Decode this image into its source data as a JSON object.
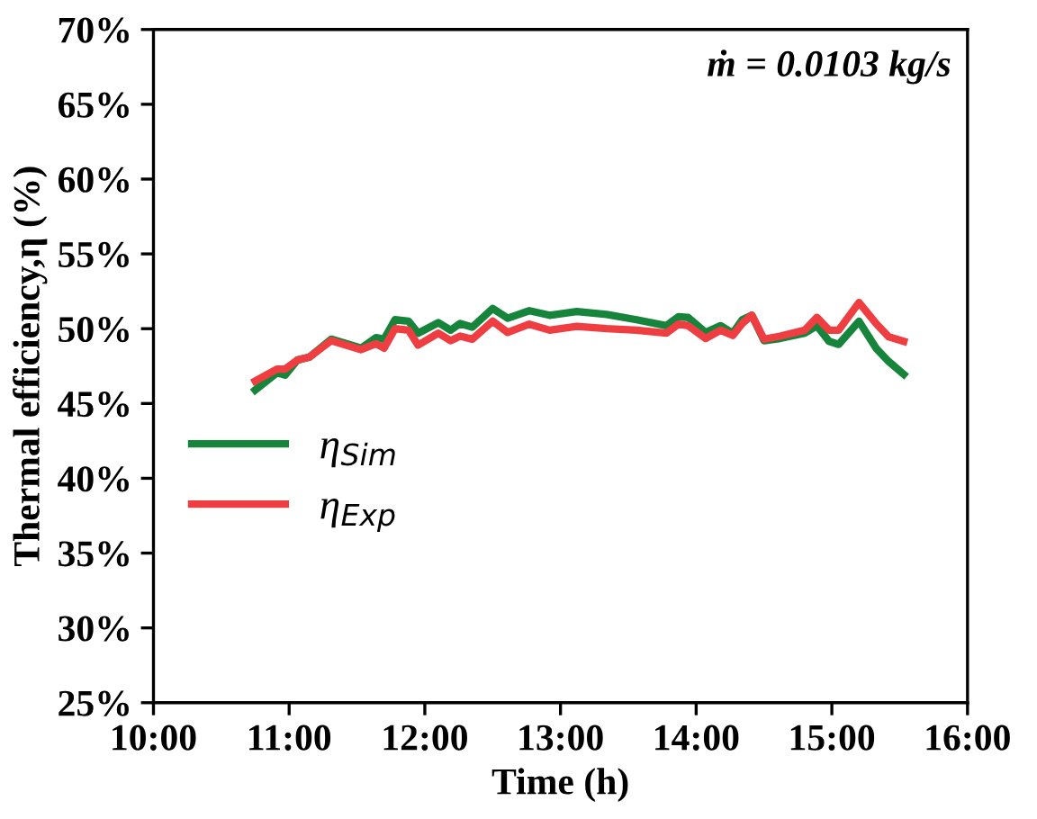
{
  "chart_data": {
    "type": "line",
    "xlabel": "Time (h)",
    "ylabel": "Thermal efficiency,η (%)",
    "annotations": [
      "ṁ = 0.0103 kg/s"
    ],
    "x": [
      10.75,
      10.91,
      10.97,
      11.06,
      11.15,
      11.31,
      11.53,
      11.64,
      11.7,
      11.78,
      11.88,
      11.95,
      12.1,
      12.19,
      12.26,
      12.35,
      12.5,
      12.61,
      12.77,
      12.92,
      13.12,
      13.34,
      13.56,
      13.78,
      13.87,
      13.94,
      14.07,
      14.18,
      14.27,
      14.34,
      14.41,
      14.5,
      14.62,
      14.8,
      14.89,
      14.98,
      15.05,
      15.2,
      15.33,
      15.42,
      15.53
    ],
    "series": [
      {
        "name": "η$_{Sim}$",
        "color": "#17843c",
        "values": [
          45.9,
          47.05,
          46.9,
          47.9,
          48.1,
          49.3,
          48.7,
          49.4,
          49.3,
          50.6,
          50.5,
          49.7,
          50.4,
          49.9,
          50.35,
          50.1,
          51.35,
          50.7,
          51.2,
          50.9,
          51.15,
          50.95,
          50.6,
          50.2,
          50.8,
          50.75,
          49.75,
          50.2,
          49.7,
          50.6,
          50.9,
          49.2,
          49.35,
          49.7,
          50.2,
          49.15,
          48.95,
          50.5,
          48.65,
          47.8,
          46.95
        ]
      },
      {
        "name": "η$_{Exp}$",
        "color": "#ef3e42",
        "values": [
          46.5,
          47.3,
          47.3,
          47.9,
          48.1,
          49.2,
          48.6,
          49.0,
          48.7,
          50.0,
          49.9,
          48.9,
          49.7,
          49.2,
          49.5,
          49.3,
          50.5,
          49.75,
          50.3,
          49.9,
          50.15,
          50.0,
          49.9,
          49.7,
          50.3,
          50.2,
          49.35,
          49.9,
          49.55,
          50.35,
          50.9,
          49.3,
          49.5,
          49.9,
          50.75,
          49.9,
          49.9,
          51.75,
          50.3,
          49.45,
          49.15
        ]
      }
    ],
    "xlim": [
      10,
      16
    ],
    "xticks": [
      {
        "value": 10,
        "label": "10:00"
      },
      {
        "value": 11,
        "label": "11:00"
      },
      {
        "value": 12,
        "label": "12:00"
      },
      {
        "value": 13,
        "label": "13:00"
      },
      {
        "value": 14,
        "label": "14:00"
      },
      {
        "value": 15,
        "label": "15:00"
      },
      {
        "value": 16,
        "label": "16:00"
      }
    ],
    "ylim": [
      25,
      70
    ],
    "yticks": [
      {
        "value": 25,
        "label": "25%"
      },
      {
        "value": 30,
        "label": "30%"
      },
      {
        "value": 35,
        "label": "35%"
      },
      {
        "value": 40,
        "label": "40%"
      },
      {
        "value": 45,
        "label": "45%"
      },
      {
        "value": 50,
        "label": "50%"
      },
      {
        "value": 55,
        "label": "55%"
      },
      {
        "value": 60,
        "label": "60%"
      },
      {
        "value": 65,
        "label": "65%"
      },
      {
        "value": 70,
        "label": "70%"
      }
    ],
    "legend": "left",
    "grid": false,
    "marker": "none",
    "line_style": "solid"
  }
}
